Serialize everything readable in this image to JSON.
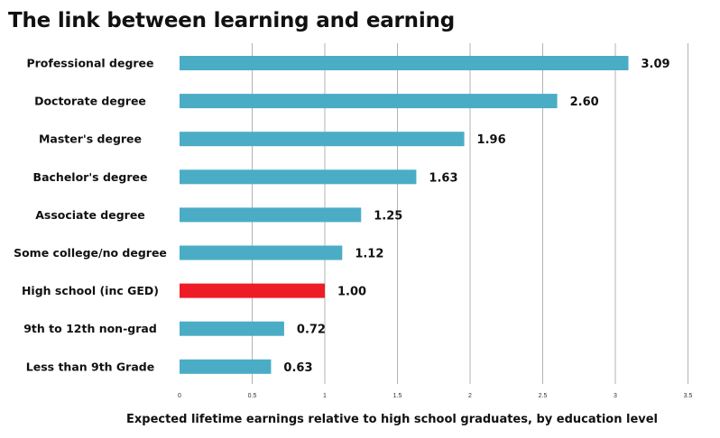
{
  "chart_data": {
    "type": "bar",
    "orientation": "horizontal",
    "title": "The link between learning and earning",
    "xlabel": "Expected lifetime earnings relative to high school graduates, by education level",
    "ylabel": "",
    "xlim": [
      0,
      3.5
    ],
    "x_ticks": [
      "0",
      "0.5",
      "1",
      "1.5",
      "2",
      "2.5",
      "3",
      "3.5"
    ],
    "grid": "vertical",
    "categories": [
      "Professional degree",
      "Doctorate degree",
      "Master's degree",
      "Bachelor's degree",
      "Associate degree",
      "Some college/no degree",
      "High school (inc GED)",
      "9th to 12th non-grad",
      "Less than 9th Grade"
    ],
    "values": [
      3.09,
      2.6,
      1.96,
      1.63,
      1.25,
      1.12,
      1.0,
      0.72,
      0.63
    ],
    "value_labels": [
      "3.09",
      "2.60",
      "1.96",
      "1.63",
      "1.25",
      "1.12",
      "1.00",
      "0.72",
      "0.63"
    ],
    "colors": {
      "bar": "#4bacc6",
      "highlight": "#ee1c25",
      "grid": "#b3b3b3"
    },
    "highlight_category": "High school (inc GED)"
  }
}
